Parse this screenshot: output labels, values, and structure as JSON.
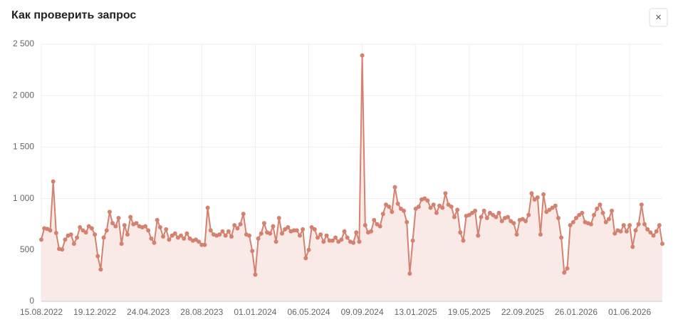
{
  "header": {
    "title": "Как проверить запрос",
    "close": "×"
  },
  "chart_data": {
    "type": "line",
    "color": "#d4826f",
    "fill": "#f9e9e7",
    "grid": true,
    "categories": [
      "15.08.2022",
      null,
      null,
      null,
      null,
      null,
      null,
      null,
      null,
      null,
      null,
      null,
      null,
      null,
      null,
      null,
      null,
      null,
      "19.12.2022",
      null,
      null,
      null,
      null,
      null,
      null,
      null,
      null,
      null,
      null,
      null,
      null,
      null,
      null,
      null,
      null,
      null,
      "24.04.2023",
      null,
      null,
      null,
      null,
      null,
      null,
      null,
      null,
      null,
      null,
      null,
      null,
      null,
      null,
      null,
      null,
      null,
      "28.08.2023",
      null,
      null,
      null,
      null,
      null,
      null,
      null,
      null,
      null,
      null,
      null,
      null,
      null,
      null,
      null,
      null,
      null,
      "01.01.2024",
      null,
      null,
      null,
      null,
      null,
      null,
      null,
      null,
      null,
      null,
      null,
      null,
      null,
      null,
      null,
      null,
      null,
      "06.05.2024",
      null,
      null,
      null,
      null,
      null,
      null,
      null,
      null,
      null,
      null,
      null,
      null,
      null,
      null,
      null,
      null,
      null,
      "09.09.2024",
      null,
      null,
      null,
      null,
      null,
      null,
      null,
      null,
      null,
      null,
      null,
      null,
      null,
      null,
      null,
      null,
      null,
      "13.01.2025",
      null,
      null,
      null,
      null,
      null,
      null,
      null,
      null,
      null,
      null,
      null,
      null,
      null,
      null,
      null,
      null,
      null,
      "19.05.2025",
      null,
      null,
      null,
      null,
      null,
      null,
      null,
      null,
      null,
      null,
      null,
      null,
      null,
      null,
      null,
      null,
      null,
      "22.09.2025",
      null,
      null,
      null,
      null,
      null,
      null,
      null,
      null,
      null,
      null,
      null,
      null,
      null,
      null,
      null,
      null,
      null,
      "26.01.2026",
      null,
      null,
      null,
      null,
      null,
      null,
      null,
      null,
      null,
      null,
      null,
      null,
      null,
      null,
      null,
      null,
      null,
      "01.06.2026",
      null,
      null,
      null,
      null,
      null,
      null,
      null,
      null,
      null,
      null,
      null
    ],
    "values": [
      600,
      710,
      705,
      690,
      1165,
      665,
      510,
      505,
      600,
      640,
      650,
      560,
      620,
      720,
      690,
      670,
      730,
      710,
      650,
      440,
      310,
      620,
      690,
      870,
      760,
      730,
      810,
      560,
      740,
      650,
      820,
      750,
      760,
      730,
      720,
      730,
      690,
      610,
      570,
      790,
      720,
      630,
      700,
      600,
      640,
      660,
      620,
      640,
      610,
      660,
      610,
      590,
      600,
      580,
      550,
      550,
      910,
      690,
      650,
      640,
      650,
      680,
      640,
      680,
      630,
      740,
      710,
      750,
      850,
      650,
      640,
      490,
      260,
      610,
      660,
      760,
      670,
      660,
      730,
      580,
      810,
      660,
      700,
      720,
      680,
      690,
      690,
      640,
      700,
      420,
      500,
      720,
      700,
      620,
      650,
      580,
      640,
      590,
      590,
      620,
      580,
      600,
      680,
      620,
      580,
      570,
      670,
      580,
      2390,
      740,
      670,
      680,
      790,
      750,
      730,
      850,
      940,
      920,
      870,
      1110,
      950,
      900,
      880,
      770,
      270,
      590,
      900,
      920,
      990,
      1000,
      980,
      910,
      940,
      860,
      930,
      910,
      1050,
      940,
      920,
      820,
      890,
      670,
      590,
      830,
      840,
      860,
      880,
      640,
      820,
      880,
      810,
      860,
      840,
      820,
      860,
      780,
      810,
      820,
      780,
      760,
      650,
      790,
      800,
      780,
      840,
      1050,
      990,
      1010,
      650,
      1040,
      870,
      890,
      910,
      930,
      810,
      620,
      280,
      320,
      740,
      770,
      810,
      840,
      860,
      770,
      760,
      750,
      840,
      900,
      940,
      860,
      770,
      800,
      880,
      660,
      690,
      680,
      740,
      680,
      740,
      530,
      690,
      750,
      940,
      750,
      700,
      670,
      640,
      680,
      740,
      560
    ],
    "ylim": [
      0,
      2500
    ],
    "yticks": [
      0,
      500,
      {
        "value": 1000,
        "label": "1 000"
      },
      {
        "value": 1500,
        "label": "1 500"
      },
      {
        "value": 2000,
        "label": "2 000"
      },
      {
        "value": 2500,
        "label": "2 500"
      }
    ]
  }
}
